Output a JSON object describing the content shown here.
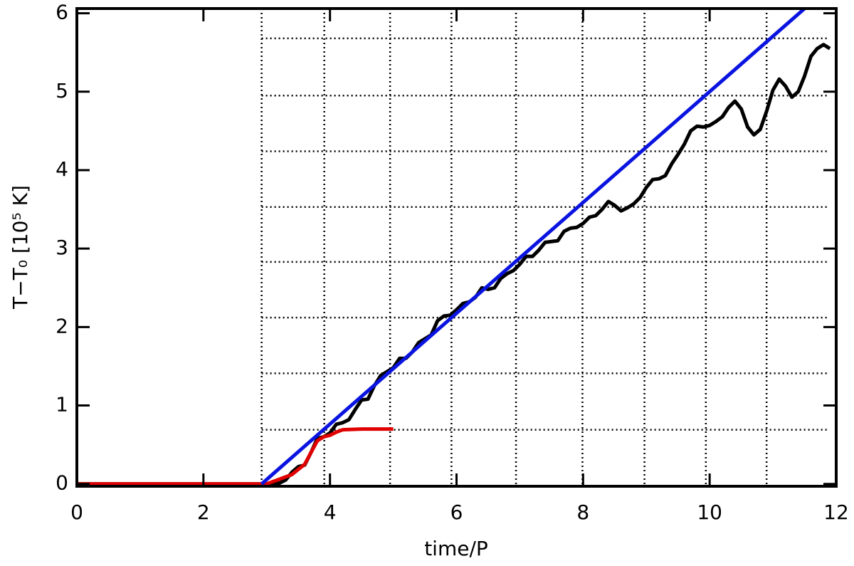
{
  "chart_data": {
    "type": "line",
    "xlabel": "time/P",
    "ylabel": "T−T₀ [10⁵ K]",
    "xlim": [
      0,
      12
    ],
    "ylim": [
      -0.03,
      6.06
    ],
    "xticks": [
      0,
      2,
      4,
      6,
      8,
      10,
      12
    ],
    "yticks": [
      0,
      1,
      2,
      3,
      4,
      5,
      6
    ],
    "grid_x": [
      2.92,
      3.91,
      4.95,
      5.92,
      6.94,
      7.99,
      8.97,
      9.94,
      10.9
    ],
    "grid_y": [
      0.69,
      1.41,
      2.12,
      2.83,
      3.53,
      4.24,
      4.95,
      5.68
    ],
    "grid_color": "#000000",
    "series": [
      {
        "color": "#000000",
        "x": [
          0,
          1,
          2,
          3,
          3.1,
          3.2,
          3.3,
          3.4,
          3.5,
          3.6,
          3.7,
          3.8,
          3.9,
          4.0,
          4.1,
          4.2,
          4.3,
          4.4,
          4.5,
          4.6,
          4.7,
          4.8,
          4.9,
          5.0,
          5.1,
          5.2,
          5.3,
          5.4,
          5.5,
          5.6,
          5.7,
          5.8,
          5.9,
          6.0,
          6.1,
          6.2,
          6.3,
          6.4,
          6.5,
          6.6,
          6.7,
          6.8,
          6.9,
          7.0,
          7.1,
          7.2,
          7.3,
          7.4,
          7.5,
          7.6,
          7.7,
          7.8,
          7.9,
          8.0,
          8.1,
          8.2,
          8.3,
          8.4,
          8.5,
          8.6,
          8.7,
          8.8,
          8.9,
          9.0,
          9.1,
          9.2,
          9.3,
          9.4,
          9.5,
          9.6,
          9.7,
          9.8,
          9.9,
          10.0,
          10.1,
          10.2,
          10.3,
          10.4,
          10.5,
          10.6,
          10.7,
          10.8,
          10.9,
          11.0,
          11.1,
          11.2,
          11.3,
          11.4,
          11.5,
          11.6,
          11.7,
          11.8,
          11.9
        ],
        "values": [
          0,
          0,
          0,
          0,
          0,
          0.01,
          0.05,
          0.15,
          0.22,
          0.24,
          0.4,
          0.58,
          0.6,
          0.65,
          0.76,
          0.78,
          0.82,
          0.95,
          1.07,
          1.08,
          1.25,
          1.38,
          1.43,
          1.48,
          1.6,
          1.6,
          1.68,
          1.8,
          1.85,
          1.9,
          2.08,
          2.14,
          2.15,
          2.22,
          2.3,
          2.32,
          2.38,
          2.5,
          2.48,
          2.5,
          2.62,
          2.68,
          2.72,
          2.8,
          2.9,
          2.9,
          2.98,
          3.08,
          3.09,
          3.1,
          3.22,
          3.26,
          3.27,
          3.32,
          3.4,
          3.42,
          3.5,
          3.6,
          3.55,
          3.48,
          3.52,
          3.57,
          3.65,
          3.78,
          3.88,
          3.89,
          3.93,
          4.08,
          4.2,
          4.33,
          4.5,
          4.56,
          4.55,
          4.57,
          4.62,
          4.68,
          4.8,
          4.88,
          4.78,
          4.55,
          4.45,
          4.52,
          4.75,
          5.02,
          5.16,
          5.07,
          4.93,
          5.0,
          5.2,
          5.45,
          5.55,
          5.6,
          5.55
        ]
      },
      {
        "color": "#e00000",
        "x": [
          0,
          3.0,
          3.4,
          3.6,
          3.8,
          3.9,
          4.0,
          4.1,
          4.2,
          4.5,
          5.0
        ],
        "values": [
          0,
          0,
          0.12,
          0.25,
          0.55,
          0.6,
          0.62,
          0.66,
          0.69,
          0.7,
          0.7
        ]
      },
      {
        "color": "#0a14e0",
        "x": [
          2.92,
          11.5
        ],
        "values": [
          0,
          6.06
        ]
      }
    ]
  }
}
